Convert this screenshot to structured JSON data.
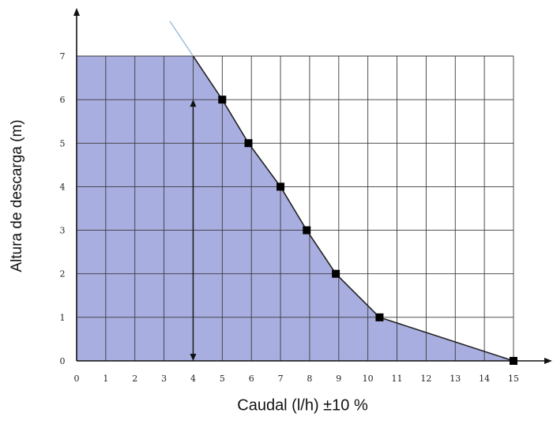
{
  "chart_data": {
    "type": "area",
    "title": "",
    "xlabel": "Caudal (l/h) ±10 %",
    "ylabel": "Altura de descarga (m)",
    "xlim": [
      0,
      15
    ],
    "ylim": [
      0,
      7
    ],
    "grid": true,
    "x_ticks": [
      "0",
      "1",
      "2",
      "3",
      "4",
      "5",
      "6",
      "7",
      "8",
      "9",
      "10",
      "11",
      "12",
      "13",
      "14",
      "15"
    ],
    "y_ticks": [
      "0",
      "1",
      "2",
      "3",
      "4",
      "5",
      "6",
      "7"
    ],
    "curve": [
      {
        "x": 0,
        "y": 7
      },
      {
        "x": 4,
        "y": 7
      },
      {
        "x": 5,
        "y": 6
      },
      {
        "x": 5.9,
        "y": 5
      },
      {
        "x": 7,
        "y": 4
      },
      {
        "x": 7.9,
        "y": 3
      },
      {
        "x": 8.9,
        "y": 2
      },
      {
        "x": 10.4,
        "y": 1
      },
      {
        "x": 15,
        "y": 0
      }
    ],
    "markers": [
      {
        "x": 5,
        "y": 6
      },
      {
        "x": 5.9,
        "y": 5
      },
      {
        "x": 7,
        "y": 4
      },
      {
        "x": 7.9,
        "y": 3
      },
      {
        "x": 8.9,
        "y": 2
      },
      {
        "x": 10.4,
        "y": 1
      },
      {
        "x": 15,
        "y": 0
      }
    ],
    "arrow_at_x": 4,
    "arrow_range_y": [
      0,
      6
    ],
    "colors": {
      "fill": "#a9aee0",
      "grid": "#3a3a3a",
      "curve": "#222222",
      "marker": "#000000",
      "extension": "#8fb4d6"
    }
  }
}
